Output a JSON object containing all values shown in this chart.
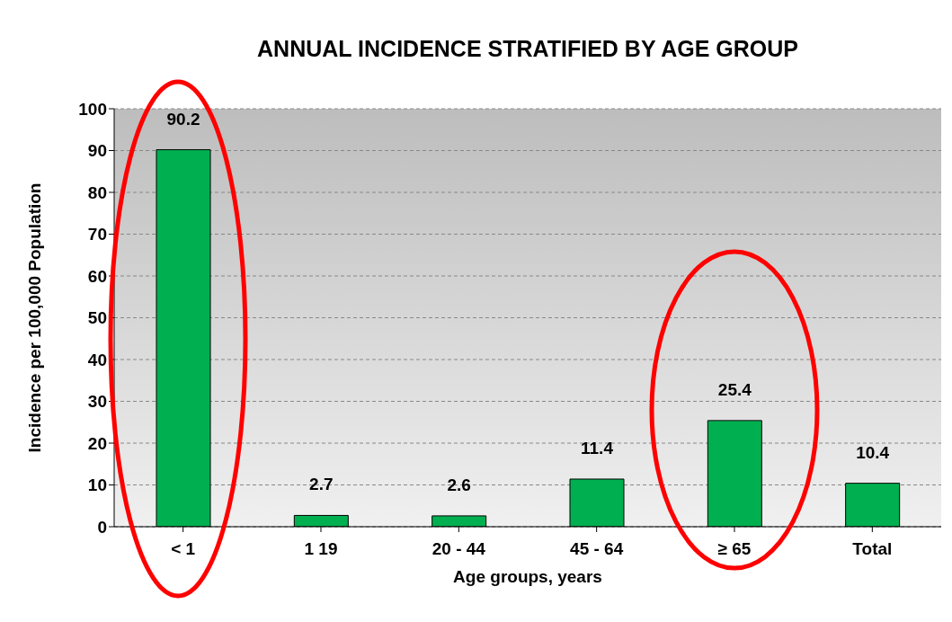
{
  "chart_data": {
    "type": "bar",
    "title": "ANNUAL INCIDENCE STRATIFIED BY AGE GROUP",
    "xlabel": "Age groups, years",
    "ylabel": "Incidence per 100,000 Population",
    "categories": [
      "< 1",
      "1  19",
      "20 - 44",
      "45 - 64",
      "≥ 65",
      "Total"
    ],
    "values": [
      90.2,
      2.7,
      2.6,
      11.4,
      25.4,
      10.4
    ],
    "color": "#00b050",
    "ylim": [
      0,
      100
    ],
    "yticks": [
      0,
      10,
      20,
      30,
      40,
      50,
      60,
      70,
      80,
      90,
      100
    ],
    "grid": "y",
    "data_labels": true
  }
}
